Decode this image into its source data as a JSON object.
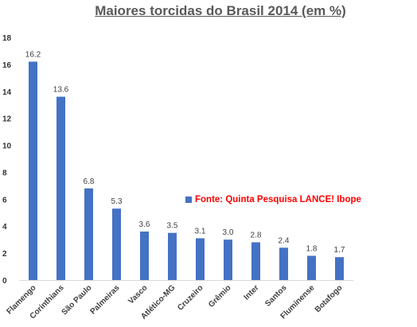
{
  "chart_data": {
    "type": "bar",
    "title": "Maiores torcidas do Brasil 2014 (em %)",
    "categories": [
      "Flamengo",
      "Corinthians",
      "São Paulo",
      "Palmeiras",
      "Vasco",
      "Atlético-MG",
      "Cruzeiro",
      "Grêmio",
      "Inter",
      "Santos",
      "Fluminense",
      "Botafogo"
    ],
    "series": [
      {
        "name": "Fonte: Quinta Pesquisa LANCE! Ibope",
        "values": [
          16.2,
          13.6,
          6.8,
          5.3,
          3.6,
          3.5,
          3.1,
          3.0,
          2.8,
          2.4,
          1.8,
          1.7
        ],
        "data_labels": [
          "16.2",
          "13.6",
          "6.8",
          "5.3",
          "3.6",
          "3.5",
          "3.1",
          "3.0",
          "2.8",
          "2.4",
          "1.8",
          "1.7"
        ],
        "color": "#4472c4"
      }
    ],
    "ylim": [
      0,
      18
    ],
    "yticks": [
      "0",
      "2",
      "4",
      "6",
      "8",
      "10",
      "12",
      "14",
      "16",
      "18"
    ],
    "xlabel": "",
    "ylabel": "",
    "grid": false,
    "legend": "right",
    "legend_color": "#ff0000"
  }
}
